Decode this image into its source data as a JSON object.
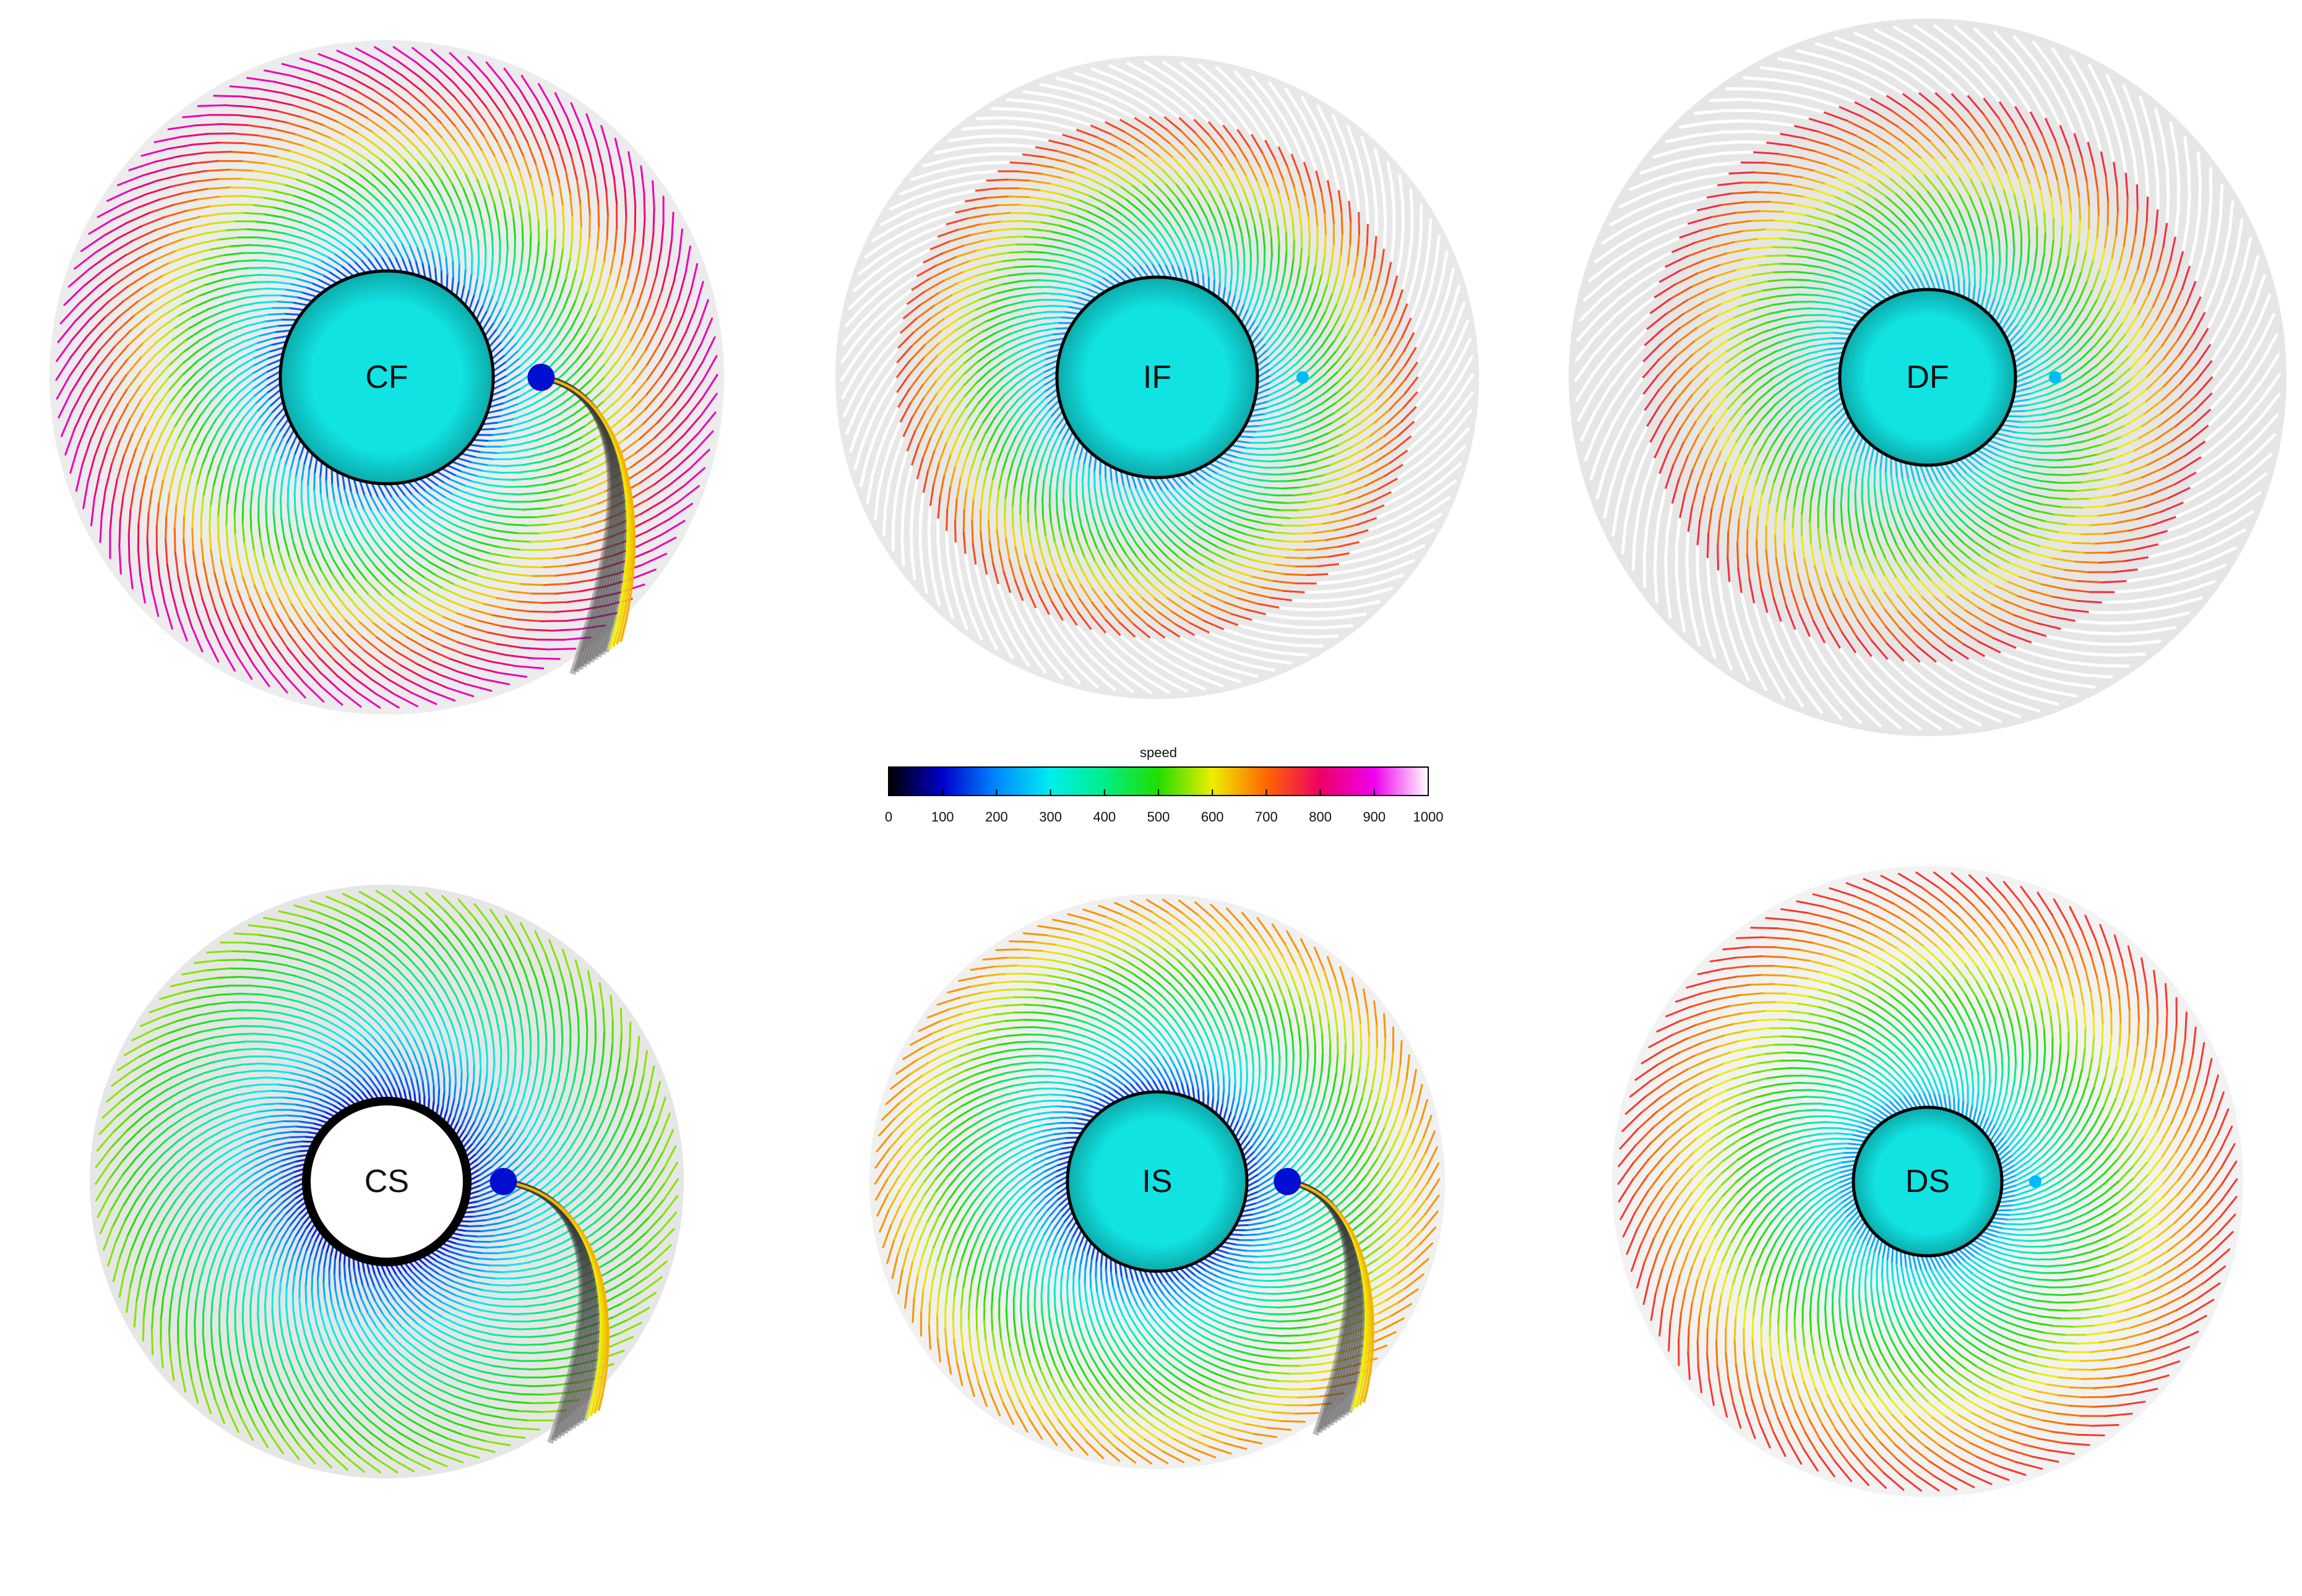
{
  "colorbar": {
    "title": "speed",
    "min": 0,
    "max": 1000,
    "ticks": [
      "0",
      "100",
      "200",
      "300",
      "400",
      "500",
      "600",
      "700",
      "800",
      "900",
      "1000"
    ],
    "stops": [
      {
        "v": 0,
        "c": "#000000"
      },
      {
        "v": 100,
        "c": "#0000cc"
      },
      {
        "v": 200,
        "c": "#0088ff"
      },
      {
        "v": 300,
        "c": "#00eeee"
      },
      {
        "v": 400,
        "c": "#00ee88"
      },
      {
        "v": 500,
        "c": "#22dd00"
      },
      {
        "v": 600,
        "c": "#eeee00"
      },
      {
        "v": 700,
        "c": "#ff6600"
      },
      {
        "v": 800,
        "c": "#ee0066"
      },
      {
        "v": 900,
        "c": "#ee00ee"
      },
      {
        "v": 1000,
        "c": "#ffffff"
      }
    ]
  },
  "panels": [
    {
      "id": "cf",
      "label": "CF",
      "core": "#11e3e3",
      "inner_speed": 120,
      "outer_speed": 880,
      "field": "#ececec",
      "wake": true,
      "bright_edge": false
    },
    {
      "id": "if",
      "label": "IF",
      "core": "#11e3e3",
      "inner_speed": 180,
      "outer_speed": 900,
      "field": "#e8e8e8",
      "wake": false,
      "bright_edge": true
    },
    {
      "id": "df",
      "label": "DF",
      "core": "#11e3e3",
      "inner_speed": 220,
      "outer_speed": 920,
      "field": "#e6e6e6",
      "wake": false,
      "bright_edge": true
    },
    {
      "id": "cs",
      "label": "CS",
      "core": "#ffffff",
      "inner_speed": 100,
      "outer_speed": 560,
      "field": "#e6e6e6",
      "wake": true,
      "bright_edge": false
    },
    {
      "id": "is",
      "label": "IS",
      "core": "#11e3e3",
      "inner_speed": 120,
      "outer_speed": 680,
      "field": "#f0f0f0",
      "wake": true,
      "bright_edge": false
    },
    {
      "id": "ds",
      "label": "DS",
      "core": "#11e3e3",
      "inner_speed": 200,
      "outer_speed": 760,
      "field": "#f2f2f2",
      "wake": false,
      "bright_edge": false
    }
  ]
}
